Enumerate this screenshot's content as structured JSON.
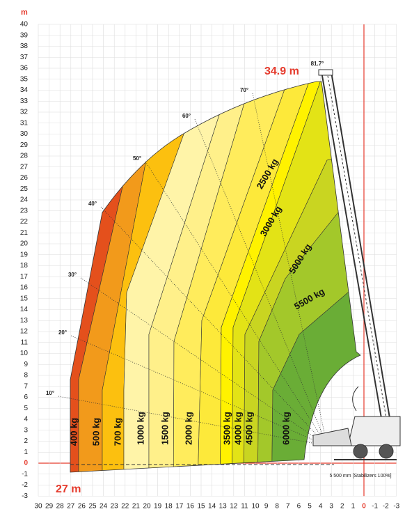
{
  "axes": {
    "unit": "m",
    "origin": 0,
    "origin_color": "#e53a2c",
    "xticks": [
      30,
      29,
      28,
      27,
      26,
      25,
      24,
      23,
      22,
      21,
      20,
      19,
      18,
      17,
      16,
      15,
      14,
      13,
      12,
      11,
      10,
      9,
      8,
      7,
      6,
      5,
      4,
      3,
      2,
      1,
      0,
      -1,
      -2,
      -3
    ],
    "yticks": [
      40,
      39,
      38,
      37,
      36,
      35,
      34,
      33,
      32,
      31,
      30,
      29,
      28,
      27,
      26,
      25,
      24,
      23,
      22,
      21,
      20,
      19,
      18,
      17,
      16,
      15,
      14,
      13,
      12,
      11,
      10,
      9,
      8,
      7,
      6,
      5,
      4,
      3,
      2,
      1,
      0,
      -1,
      -2,
      -3
    ]
  },
  "annotations": {
    "max_height": "34.9 m",
    "max_reach": "27 m",
    "stabilizers": "5 500 mm [Stabilizers 100%]"
  },
  "angles": [
    "10°",
    "20°",
    "30°",
    "40°",
    "50°",
    "60°",
    "70°",
    "81.7°"
  ],
  "loads": [
    "400 kg",
    "500 kg",
    "700 kg",
    "1000 kg",
    "1500 kg",
    "2000 kg",
    "3500 kg",
    "4000 kg",
    "4500 kg",
    "6000 kg",
    "2500 kg",
    "3000 kg",
    "5000 kg",
    "5500 kg"
  ]
}
